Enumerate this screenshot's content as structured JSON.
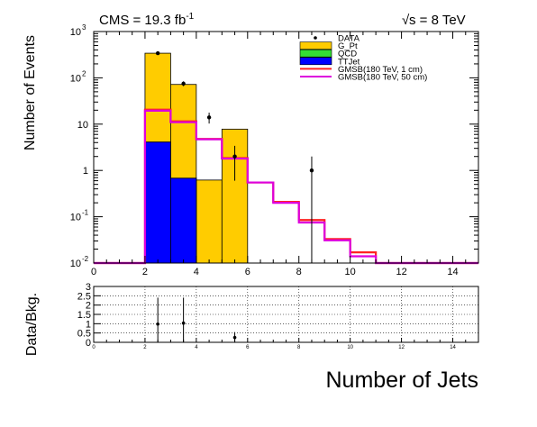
{
  "header": {
    "lumi_prefix": "CMS = 19.3 fb",
    "lumi_exponent": "-1",
    "sqrt_symbol": "√",
    "energy_label": "s = 8 TeV"
  },
  "chart_data": [
    {
      "type": "histogram",
      "panel": "main",
      "ylabel": "Number of Events",
      "y_scale": "log",
      "xlim": [
        0,
        15
      ],
      "ylim": [
        0.01,
        1000
      ],
      "x_ticks": [
        0,
        2,
        4,
        6,
        8,
        10,
        12,
        14
      ],
      "y_ticks": [
        {
          "value": 0.01,
          "base": "10",
          "exp": "-2"
        },
        {
          "value": 0.1,
          "base": "10",
          "exp": "-1"
        },
        {
          "value": 1,
          "base": "1",
          "exp": ""
        },
        {
          "value": 10,
          "base": "10",
          "exp": ""
        },
        {
          "value": 100,
          "base": "10",
          "exp": "2"
        },
        {
          "value": 1000,
          "base": "10",
          "exp": "3"
        }
      ],
      "bin_edges": [
        0,
        1,
        2,
        3,
        4,
        5,
        6,
        7,
        8,
        9,
        10,
        11,
        12,
        13,
        14,
        15
      ],
      "stack": [
        {
          "name": "G_Pt",
          "color": "#ffcc00",
          "cumulative": [
            0,
            0,
            340,
            72,
            0.62,
            7.8,
            0,
            0,
            0,
            0,
            0,
            0,
            0,
            0,
            0
          ]
        },
        {
          "name": "QCD",
          "color": "#33dd33",
          "cumulative": [
            0,
            0,
            4.1,
            0.68,
            0,
            0,
            0,
            0,
            0,
            0,
            0,
            0,
            0,
            0,
            0
          ]
        },
        {
          "name": "TTJet",
          "color": "#0000ff",
          "cumulative": [
            0,
            0,
            4.1,
            0.68,
            0,
            0,
            0,
            0,
            0,
            0,
            0,
            0,
            0,
            0,
            0
          ]
        }
      ],
      "signals": [
        {
          "name": "GMSB(180 TeV, 1 cm)",
          "color": "#ff2222",
          "values": [
            0.01,
            0.01,
            20.5,
            11.5,
            4.8,
            1.85,
            0.55,
            0.21,
            0.085,
            0.033,
            0.017,
            0.01,
            0.01,
            0.01,
            0.01
          ]
        },
        {
          "name": "GMSB(180 TeV, 50 cm)",
          "color": "#dd00dd",
          "values": [
            0.01,
            0.01,
            19.5,
            11,
            4.7,
            1.8,
            0.55,
            0.2,
            0.075,
            0.031,
            0.014,
            0.01,
            0.01,
            0.01,
            0.01
          ]
        }
      ],
      "data": {
        "name": "DATA",
        "points": [
          {
            "x": 2.5,
            "y": 340,
            "lo": 322,
            "hi": 358
          },
          {
            "x": 3.5,
            "y": 75,
            "lo": 66,
            "hi": 84
          },
          {
            "x": 4.5,
            "y": 14,
            "lo": 10.3,
            "hi": 17.7
          },
          {
            "x": 5.5,
            "y": 2,
            "lo": 0.6,
            "hi": 3.4
          },
          {
            "x": 8.5,
            "y": 1,
            "lo": 0.01,
            "hi": 2
          }
        ]
      },
      "legend": {
        "placement": "top-right",
        "entries": [
          {
            "label": "DATA",
            "kind": "marker",
            "color": "#000000"
          },
          {
            "label": "G_Pt",
            "kind": "fill",
            "color": "#ffcc00"
          },
          {
            "label": "QCD",
            "kind": "fill",
            "color": "#33dd33"
          },
          {
            "label": "TTJet",
            "kind": "fill",
            "color": "#0000ff"
          },
          {
            "label": "GMSB(180 TeV, 1 cm)",
            "kind": "line",
            "color": "#ff2222"
          },
          {
            "label": "GMSB(180 TeV, 50 cm)",
            "kind": "line",
            "color": "#dd00dd"
          }
        ]
      }
    },
    {
      "type": "scatter",
      "panel": "ratio",
      "ylabel": "Data/Bkg.",
      "xlabel": "Number of Jets",
      "xlim": [
        0,
        15
      ],
      "ylim": [
        0,
        3
      ],
      "grid": true,
      "x_ticks": [
        0,
        2,
        4,
        6,
        8,
        10,
        12,
        14
      ],
      "y_ticks": [
        "0",
        "0.5",
        "1",
        "1.5",
        "2",
        "2.5",
        "3"
      ],
      "points": [
        {
          "x": 2.5,
          "y": 0.98,
          "lo": 0,
          "hi": 2.4
        },
        {
          "x": 3.5,
          "y": 1.03,
          "lo": 0,
          "hi": 2.4
        },
        {
          "x": 5.5,
          "y": 0.26,
          "lo": 0,
          "hi": 0.55
        }
      ]
    }
  ]
}
